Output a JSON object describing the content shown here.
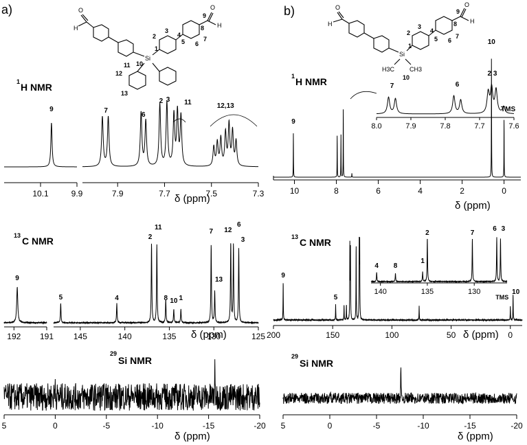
{
  "panels": [
    {
      "label": "a)"
    },
    {
      "label": "b)"
    }
  ],
  "structures": {
    "a": {
      "atoms": [
        "H",
        "O",
        "O",
        "H",
        "Si"
      ],
      "numbers": [
        "9",
        "1",
        "2",
        "3",
        "4",
        "5",
        "6",
        "7",
        "8",
        "10",
        "11",
        "12",
        "13"
      ]
    },
    "b": {
      "atoms": [
        "H",
        "O",
        "O",
        "H",
        "Si",
        "H3C",
        "CH3"
      ],
      "numbers": [
        "9",
        "1",
        "2",
        "3",
        "4",
        "5",
        "6",
        "7",
        "8",
        "10"
      ]
    }
  },
  "chart_data": [
    {
      "id": "a_h1",
      "type": "line",
      "title": "¹H NMR",
      "nucleus_sup": "1",
      "nucleus": "H NMR",
      "xlabel": "δ (ppm)",
      "axis_breaks": [
        {
          "xlim": [
            10.3,
            9.9
          ],
          "ticks": [
            "10.1",
            "9.9"
          ]
        },
        {
          "xlim": [
            8.05,
            7.3
          ],
          "ticks": [
            "7.9",
            "7.7",
            "7.5",
            "7.3"
          ]
        }
      ],
      "peaks": [
        {
          "shift": 10.04,
          "label": "9"
        },
        {
          "shift": 7.95,
          "label": "7"
        },
        {
          "shift": 7.79,
          "label": "6"
        },
        {
          "shift": 7.71,
          "label": "2"
        },
        {
          "shift": 7.68,
          "label": "3"
        },
        {
          "shift": 7.63,
          "label": "11"
        },
        {
          "shift": 7.44,
          "label": "12,13"
        }
      ]
    },
    {
      "id": "a_c13",
      "type": "line",
      "title": "¹³C NMR",
      "nucleus_sup": "13",
      "nucleus": "C NMR",
      "xlabel": "δ (ppm)",
      "axis_breaks": [
        {
          "xlim": [
            192.3,
            191
          ],
          "ticks": [
            "192",
            "191"
          ]
        },
        {
          "xlim": [
            148,
            125
          ],
          "ticks": [
            "145",
            "140",
            "135",
            "130",
            "125"
          ]
        }
      ],
      "peaks": [
        {
          "shift": 191.9,
          "label": "9"
        },
        {
          "shift": 147.2,
          "label": "5"
        },
        {
          "shift": 140.9,
          "label": "4"
        },
        {
          "shift": 137.0,
          "label": "2"
        },
        {
          "shift": 136.4,
          "label": "11"
        },
        {
          "shift": 135.4,
          "label": "8"
        },
        {
          "shift": 134.5,
          "label": "10"
        },
        {
          "shift": 133.7,
          "label": "1"
        },
        {
          "shift": 130.3,
          "label": "7"
        },
        {
          "shift": 129.9,
          "label": "13"
        },
        {
          "shift": 128.1,
          "label": "12"
        },
        {
          "shift": 127.8,
          "label": "6"
        },
        {
          "shift": 127.2,
          "label": "3"
        }
      ]
    },
    {
      "id": "a_si29",
      "type": "line",
      "title": "²⁹Si NMR",
      "nucleus_sup": "29",
      "nucleus": "Si NMR",
      "xlabel": "δ (ppm)",
      "xlim": [
        5,
        -20
      ],
      "ticks": [
        "5",
        "0",
        "-5",
        "-10",
        "-15",
        "-20"
      ],
      "peaks": [
        {
          "shift": -15.6
        }
      ]
    },
    {
      "id": "b_h1",
      "type": "line",
      "title": "¹H NMR",
      "nucleus_sup": "1",
      "nucleus": "H NMR",
      "xlabel": "δ (ppm)",
      "xlim": [
        11,
        -0.8
      ],
      "ticks": [
        "10",
        "8",
        "6",
        "4",
        "2",
        "0"
      ],
      "peaks": [
        {
          "shift": 10.05,
          "label": "9"
        },
        {
          "shift": 7.95
        },
        {
          "shift": 7.78
        },
        {
          "shift": 7.66
        },
        {
          "shift": 0.6,
          "label": "10"
        },
        {
          "shift": 0.0,
          "label": "TMS"
        }
      ],
      "inset": {
        "xlim": [
          8.0,
          7.6
        ],
        "ticks": [
          "8.0",
          "7.9",
          "7.8",
          "7.7",
          "7.6"
        ],
        "peaks": [
          {
            "shift": 7.95,
            "label": "7"
          },
          {
            "shift": 7.76,
            "label": "6"
          },
          {
            "shift": 7.66,
            "label": "2  3"
          }
        ]
      }
    },
    {
      "id": "b_c13",
      "type": "line",
      "title": "¹³C NMR",
      "nucleus_sup": "13",
      "nucleus": "C NMR",
      "xlabel": "δ (ppm)",
      "xlim": [
        200,
        -10
      ],
      "ticks": [
        "200",
        "150",
        "100",
        "50",
        "0"
      ],
      "peaks": [
        {
          "shift": 191.8,
          "label": "9"
        },
        {
          "shift": 147.5,
          "label": "5"
        },
        {
          "shift": 77.0
        },
        {
          "shift": 0.0,
          "label": "TMS"
        },
        {
          "shift": -2.3,
          "label": "10"
        }
      ],
      "inset": {
        "xlim": [
          141,
          126.5
        ],
        "ticks": [
          "140",
          "135",
          "130"
        ],
        "peaks": [
          {
            "shift": 140.4,
            "label": "4"
          },
          {
            "shift": 138.4,
            "label": "8"
          },
          {
            "shift": 135.5,
            "label": "1"
          },
          {
            "shift": 135.0,
            "label": "2"
          },
          {
            "shift": 130.2,
            "label": "7"
          },
          {
            "shift": 127.6,
            "label": "6"
          },
          {
            "shift": 127.2,
            "label": "3"
          }
        ]
      }
    },
    {
      "id": "b_si29",
      "type": "line",
      "title": "²⁹Si NMR",
      "nucleus_sup": "29",
      "nucleus": "Si NMR",
      "xlabel": "δ (ppm)",
      "xlim": [
        5,
        -20
      ],
      "ticks": [
        "5",
        "0",
        "-5",
        "-10",
        "-15",
        "-20"
      ],
      "peaks": [
        {
          "shift": -7.6
        }
      ]
    }
  ]
}
